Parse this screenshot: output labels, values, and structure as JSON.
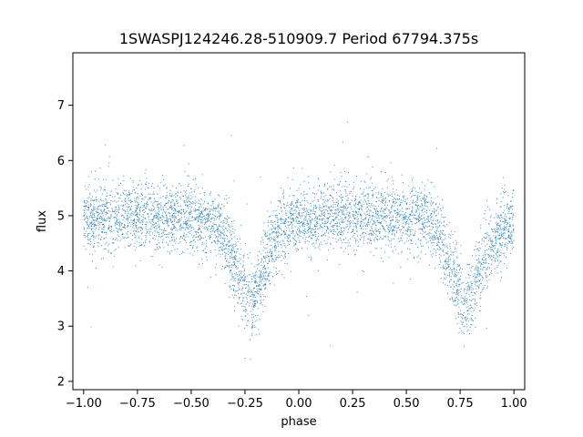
{
  "chart_data": {
    "type": "scatter",
    "title": "1SWASPJ124246.28-510909.7 Period 67794.375s",
    "xlabel": "phase",
    "ylabel": "flux",
    "xlim": [
      -1.05,
      1.05
    ],
    "ylim": [
      1.85,
      7.95
    ],
    "x_ticks": [
      -1.0,
      -0.75,
      -0.5,
      -0.25,
      0.0,
      0.25,
      0.5,
      0.75,
      1.0
    ],
    "x_tick_labels": [
      "−1.00",
      "−0.75",
      "−0.50",
      "−0.25",
      "0.00",
      "0.25",
      "0.50",
      "0.75",
      "1.00"
    ],
    "y_ticks": [
      2,
      3,
      4,
      5,
      6,
      7
    ],
    "y_tick_labels": [
      "2",
      "3",
      "4",
      "5",
      "6",
      "7"
    ],
    "grid": false,
    "legend": "none",
    "series": [
      {
        "color": "#1f77b4",
        "marker_size": "tiny",
        "baseline_flux": 5.0,
        "scatter_sigma": 0.3,
        "eclipses": [
          {
            "phase_center": -0.22,
            "min_flux": 3.4
          },
          {
            "phase_center": 0.78,
            "min_flux": 3.4
          }
        ],
        "x": [
          -1.0,
          -0.9,
          -0.8,
          -0.7,
          -0.6,
          -0.5,
          -0.4,
          -0.35,
          -0.3,
          -0.25,
          -0.22,
          -0.2,
          -0.15,
          -0.1,
          -0.05,
          0.0,
          0.1,
          0.2,
          0.3,
          0.4,
          0.5,
          0.6,
          0.65,
          0.7,
          0.75,
          0.78,
          0.8,
          0.85,
          0.9,
          0.95,
          1.0
        ],
        "y": [
          4.9,
          5.0,
          5.0,
          5.0,
          4.95,
          4.95,
          4.9,
          4.7,
          4.1,
          3.6,
          3.4,
          3.6,
          4.2,
          4.7,
          4.85,
          4.85,
          4.95,
          5.0,
          5.0,
          4.95,
          4.95,
          4.9,
          4.7,
          4.1,
          3.6,
          3.4,
          3.6,
          4.1,
          4.5,
          4.75,
          4.85
        ]
      }
    ]
  }
}
